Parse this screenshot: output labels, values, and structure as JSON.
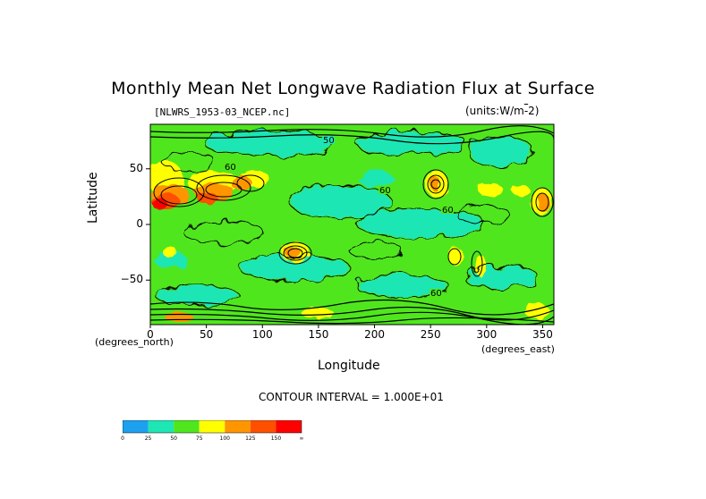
{
  "figure": {
    "title": "Monthly Mean Net Longwave Radiation Flux at Surface",
    "filename": "[NLWRS_1953-03_NCEP.nc]",
    "units": "(units:W/m^2)",
    "xunit_left": "(degrees_north)",
    "xunit_right": "(degrees_east)",
    "contour_interval": "CONTOUR INTERVAL = 1.000E+01"
  },
  "colors": {
    "bands": [
      "#1ea0f0",
      "#1ee6b4",
      "#50e61e",
      "#ffff00",
      "#ff9600",
      "#ff5000",
      "#ff0000"
    ],
    "contour": "#000000"
  },
  "chart_data": {
    "type": "heatmap",
    "title": "Monthly Mean Net Longwave Radiation Flux at Surface",
    "xlabel": "Longitude",
    "ylabel": "Latitude",
    "xlim": [
      0,
      360
    ],
    "ylim": [
      -90,
      90
    ],
    "x_ticks": [
      0,
      50,
      100,
      150,
      200,
      250,
      300,
      350
    ],
    "x_tick_labels": [
      "0",
      "50",
      "100",
      "150",
      "200",
      "250",
      "300",
      "350"
    ],
    "y_ticks": [
      50,
      0,
      -50
    ],
    "y_tick_labels": [
      "50",
      "0",
      "−50"
    ],
    "colorbar": {
      "levels": [
        "0",
        "25",
        "50",
        "75",
        "100",
        "125",
        "150",
        "∞"
      ]
    },
    "features": [
      {
        "lon": 15,
        "lat": 20,
        "value": 140
      },
      {
        "lon": 45,
        "lat": 25,
        "value": 110
      },
      {
        "lon": 75,
        "lat": 30,
        "value": 120
      },
      {
        "lon": 20,
        "lat": 40,
        "value": 85
      },
      {
        "lon": 128,
        "lat": -25,
        "value": 110
      },
      {
        "lon": 255,
        "lat": 35,
        "value": 105
      },
      {
        "lon": 300,
        "lat": -25,
        "value": 95
      },
      {
        "lon": 345,
        "lat": 22,
        "value": 110
      },
      {
        "lon": 310,
        "lat": 30,
        "value": 80
      },
      {
        "lon": 150,
        "lat": -80,
        "value": 110
      },
      {
        "lon": 330,
        "lat": -82,
        "value": 90
      }
    ]
  }
}
